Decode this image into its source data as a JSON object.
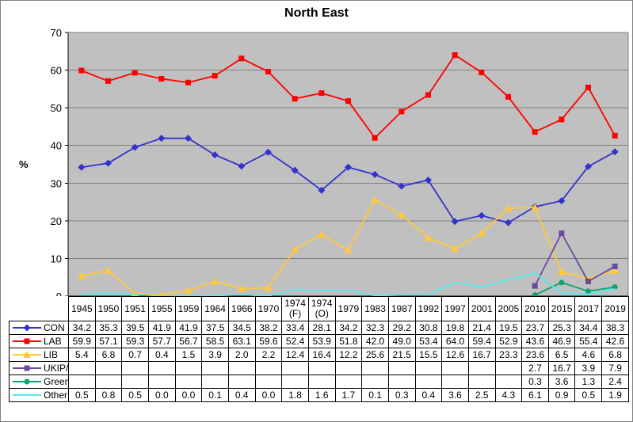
{
  "chart_data": {
    "type": "line",
    "title": "North East",
    "ylabel": "%",
    "ylim": [
      0,
      70
    ],
    "ytick_step": 10,
    "grid": "horizontal",
    "plot_background": "#C0C0C0",
    "gridline_color": "#808080",
    "axis_color": "#000000",
    "legend_position": "table-left-column",
    "categories": [
      "1945",
      "1950",
      "1951",
      "1955",
      "1959",
      "1964",
      "1966",
      "1970",
      "1974 (F)",
      "1974 (O)",
      "1979",
      "1983",
      "1987",
      "1992",
      "1997",
      "2001",
      "2005",
      "2010",
      "2015",
      "2017",
      "2019"
    ],
    "series": [
      {
        "name": "CON",
        "color": "#3333CC",
        "marker": "diamond",
        "values": [
          34.2,
          35.3,
          39.5,
          41.9,
          41.9,
          37.5,
          34.5,
          38.2,
          33.4,
          28.1,
          34.2,
          32.3,
          29.2,
          30.8,
          19.8,
          21.4,
          19.5,
          23.7,
          25.3,
          34.4,
          38.3
        ]
      },
      {
        "name": "LAB",
        "color": "#FF0000",
        "marker": "square",
        "values": [
          59.9,
          57.1,
          59.3,
          57.7,
          56.7,
          58.5,
          63.1,
          59.6,
          52.4,
          53.9,
          51.8,
          42.0,
          49.0,
          53.4,
          64.0,
          59.4,
          52.9,
          43.6,
          46.9,
          55.4,
          42.6
        ]
      },
      {
        "name": "LIB",
        "color": "#FFC937",
        "marker": "triangle",
        "values": [
          5.4,
          6.8,
          0.7,
          0.4,
          1.5,
          3.9,
          2.0,
          2.2,
          12.4,
          16.4,
          12.2,
          25.6,
          21.5,
          15.5,
          12.6,
          16.7,
          23.3,
          23.6,
          6.5,
          4.6,
          6.8
        ]
      },
      {
        "name": "UKIP/Br",
        "color": "#684B9E",
        "marker": "square",
        "values": [
          null,
          null,
          null,
          null,
          null,
          null,
          null,
          null,
          null,
          null,
          null,
          null,
          null,
          null,
          null,
          null,
          null,
          2.7,
          16.7,
          3.9,
          7.9
        ]
      },
      {
        "name": "Green",
        "color": "#0AA46E",
        "marker": "circle",
        "values": [
          null,
          null,
          null,
          null,
          null,
          null,
          null,
          null,
          null,
          null,
          null,
          null,
          null,
          null,
          null,
          null,
          null,
          0.3,
          3.6,
          1.3,
          2.4
        ]
      },
      {
        "name": "Other",
        "color": "#55EAEA",
        "marker": "none",
        "values": [
          0.5,
          0.8,
          0.5,
          0.0,
          0.0,
          0.1,
          0.4,
          0.0,
          1.8,
          1.6,
          1.7,
          0.1,
          0.3,
          0.4,
          3.6,
          2.5,
          4.3,
          6.1,
          0.9,
          0.5,
          1.9
        ]
      }
    ]
  }
}
